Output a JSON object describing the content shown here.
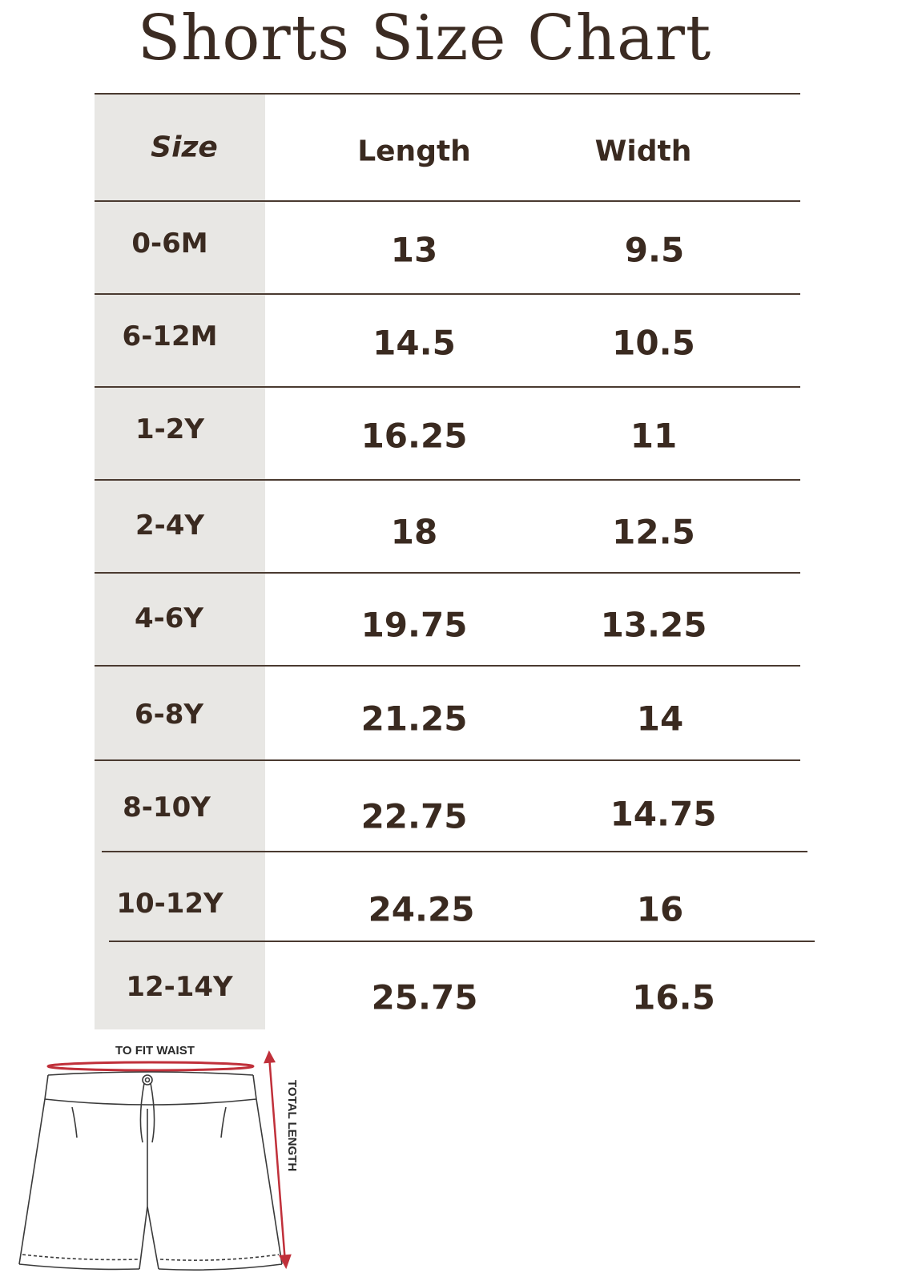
{
  "title": "Shorts Size Chart",
  "table": {
    "headers": {
      "size": "Size",
      "length": "Length",
      "width": "Width"
    },
    "rows": [
      {
        "size": "0-6M",
        "length": "13",
        "width": "9.5"
      },
      {
        "size": "6-12M",
        "length": "14.5",
        "width": "10.5"
      },
      {
        "size": "1-2Y",
        "length": "16.25",
        "width": "11"
      },
      {
        "size": "2-4Y",
        "length": "18",
        "width": "12.5"
      },
      {
        "size": "4-6Y",
        "length": "19.75",
        "width": "13.25"
      },
      {
        "size": "6-8Y",
        "length": "21.25",
        "width": "14"
      },
      {
        "size": "8-10Y",
        "length": "22.75",
        "width": "14.75"
      },
      {
        "size": "10-12Y",
        "length": "24.25",
        "width": "16"
      },
      {
        "size": "12-14Y",
        "length": "25.75",
        "width": "16.5"
      }
    ]
  },
  "diagram": {
    "waist_label": "TO FIT WAIST",
    "length_label": "TOTAL LENGTH",
    "waist_color": "#c0303a",
    "length_color": "#c0303a"
  },
  "colors": {
    "text": "#3a2a20",
    "size_column_bg": "#e8e7e4",
    "rule": "#4a3a30"
  }
}
